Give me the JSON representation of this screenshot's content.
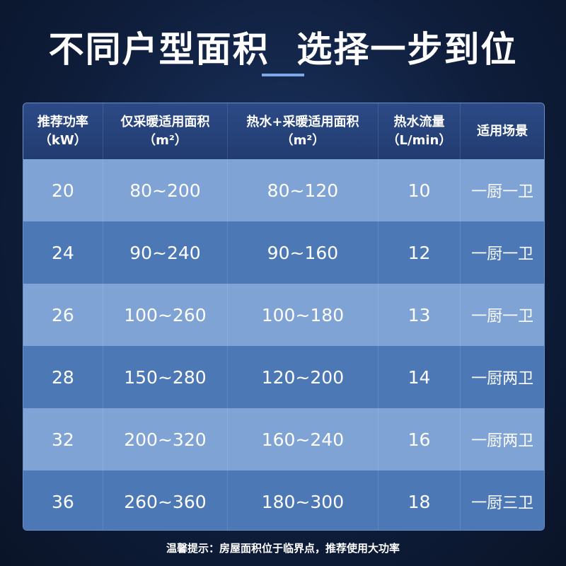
{
  "title": "不同户型面积  选择一步到位",
  "colors": {
    "header": "#223c70",
    "row_light": "#7ea3d4",
    "row_dark": "#4c78b6",
    "background": "#0f1e3c"
  },
  "table": {
    "headers": [
      {
        "line1": "推荐功率",
        "line2": "（kW）"
      },
      {
        "line1": "仅采暖适用面积",
        "line2": "（m²）"
      },
      {
        "line1": "热水+采暖适用面积",
        "line2": "（m²）"
      },
      {
        "line1": "热水流量",
        "line2": "（L/min）"
      },
      {
        "line1": "适用场景",
        "line2": ""
      }
    ],
    "rows": [
      [
        "20",
        "80~200",
        "80~120",
        "10",
        "一厨一卫"
      ],
      [
        "24",
        "90~240",
        "90~160",
        "12",
        "一厨一卫"
      ],
      [
        "26",
        "100~260",
        "100~180",
        "13",
        "一厨一卫"
      ],
      [
        "28",
        "150~280",
        "120~200",
        "14",
        "一厨两卫"
      ],
      [
        "32",
        "200~320",
        "160~240",
        "16",
        "一厨两卫"
      ],
      [
        "36",
        "260~360",
        "180~300",
        "18",
        "一厨三卫"
      ]
    ]
  },
  "tip": "温馨提示：房屋面积位于临界点，推荐使用大功率"
}
